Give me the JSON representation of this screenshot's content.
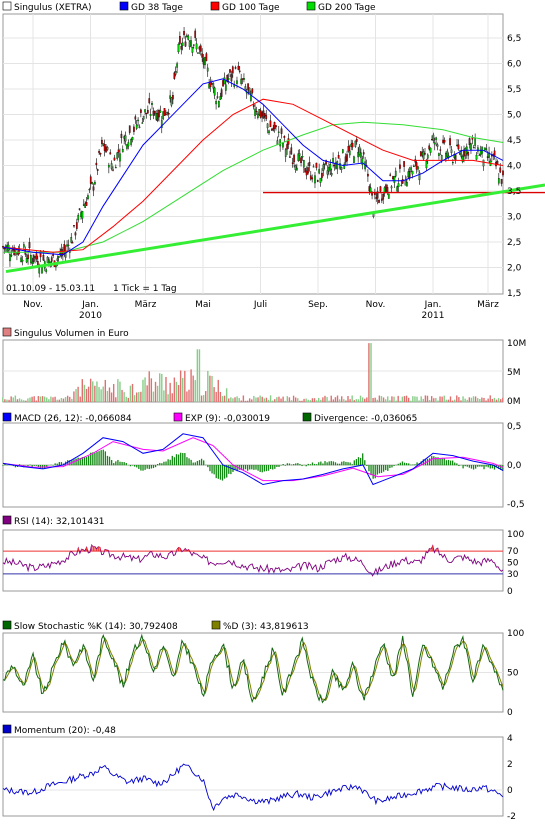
{
  "chart_data": [
    {
      "type": "line",
      "panel": "price",
      "legend": [
        {
          "label": "Singulus (XETRA)",
          "color": "#ffffff"
        },
        {
          "label": "GD 38 Tage",
          "color": "#0000ff"
        },
        {
          "label": "GD 100 Tage",
          "color": "#ff0000"
        },
        {
          "label": "GD 200 Tage",
          "color": "#00dd00"
        }
      ],
      "date_range_label": "01.10.09 - 15.03.11",
      "tick_label": "1 Tick = 1 Tag",
      "ylim": [
        1.5,
        7.0
      ],
      "yticks": [
        "6,5",
        "6,0",
        "5,5",
        "5,0",
        "4,5",
        "4,0",
        "3,5",
        "3,0",
        "2,5",
        "2,0",
        "1,5"
      ],
      "xticks": [
        {
          "label": "Nov.",
          "pos": 0.06
        },
        {
          "label": "Jan.",
          "pos": 0.175
        },
        {
          "label": "März",
          "pos": 0.285
        },
        {
          "label": "Mai",
          "pos": 0.4
        },
        {
          "label": "Juli",
          "pos": 0.515
        },
        {
          "label": "Sep.",
          "pos": 0.63
        },
        {
          "label": "Nov.",
          "pos": 0.745
        },
        {
          "label": "Jan.",
          "pos": 0.86
        },
        {
          "label": "März",
          "pos": 0.97
        }
      ],
      "year_labels": [
        {
          "label": "2010",
          "pos": 0.175
        },
        {
          "label": "2011",
          "pos": 0.86
        }
      ],
      "close": [
        [
          0.0,
          2.4
        ],
        [
          0.03,
          2.35
        ],
        [
          0.06,
          2.2
        ],
        [
          0.09,
          2.1
        ],
        [
          0.12,
          2.25
        ],
        [
          0.14,
          2.6
        ],
        [
          0.16,
          3.2
        ],
        [
          0.18,
          3.6
        ],
        [
          0.2,
          4.4
        ],
        [
          0.22,
          4.0
        ],
        [
          0.24,
          4.5
        ],
        [
          0.26,
          4.7
        ],
        [
          0.28,
          5.0
        ],
        [
          0.3,
          5.1
        ],
        [
          0.32,
          5.0
        ],
        [
          0.34,
          5.3
        ],
        [
          0.35,
          6.2
        ],
        [
          0.37,
          6.6
        ],
        [
          0.39,
          6.3
        ],
        [
          0.41,
          5.8
        ],
        [
          0.43,
          5.3
        ],
        [
          0.45,
          5.7
        ],
        [
          0.47,
          5.8
        ],
        [
          0.49,
          5.4
        ],
        [
          0.51,
          5.1
        ],
        [
          0.53,
          4.8
        ],
        [
          0.55,
          4.6
        ],
        [
          0.57,
          4.3
        ],
        [
          0.59,
          4.1
        ],
        [
          0.61,
          3.9
        ],
        [
          0.63,
          3.8
        ],
        [
          0.65,
          3.9
        ],
        [
          0.67,
          4.1
        ],
        [
          0.69,
          4.2
        ],
        [
          0.71,
          4.4
        ],
        [
          0.73,
          3.8
        ],
        [
          0.74,
          3.2
        ],
        [
          0.76,
          3.5
        ],
        [
          0.78,
          3.7
        ],
        [
          0.8,
          3.8
        ],
        [
          0.82,
          3.9
        ],
        [
          0.84,
          4.1
        ],
        [
          0.86,
          4.5
        ],
        [
          0.88,
          4.3
        ],
        [
          0.9,
          4.2
        ],
        [
          0.92,
          4.3
        ],
        [
          0.94,
          4.4
        ],
        [
          0.96,
          4.2
        ],
        [
          0.98,
          4.1
        ],
        [
          1.0,
          3.7
        ]
      ],
      "gd38": [
        [
          0.0,
          2.4
        ],
        [
          0.06,
          2.3
        ],
        [
          0.12,
          2.25
        ],
        [
          0.16,
          2.5
        ],
        [
          0.2,
          3.2
        ],
        [
          0.24,
          3.8
        ],
        [
          0.28,
          4.4
        ],
        [
          0.32,
          4.8
        ],
        [
          0.36,
          5.2
        ],
        [
          0.4,
          5.6
        ],
        [
          0.44,
          5.7
        ],
        [
          0.48,
          5.5
        ],
        [
          0.52,
          5.2
        ],
        [
          0.56,
          4.8
        ],
        [
          0.6,
          4.4
        ],
        [
          0.64,
          4.1
        ],
        [
          0.68,
          4.0
        ],
        [
          0.72,
          4.05
        ],
        [
          0.76,
          3.7
        ],
        [
          0.8,
          3.7
        ],
        [
          0.84,
          3.85
        ],
        [
          0.88,
          4.1
        ],
        [
          0.92,
          4.3
        ],
        [
          0.96,
          4.3
        ],
        [
          1.0,
          4.1
        ]
      ],
      "gd100": [
        [
          0.0,
          2.4
        ],
        [
          0.1,
          2.3
        ],
        [
          0.16,
          2.35
        ],
        [
          0.22,
          2.8
        ],
        [
          0.28,
          3.3
        ],
        [
          0.34,
          3.9
        ],
        [
          0.4,
          4.5
        ],
        [
          0.46,
          5.0
        ],
        [
          0.52,
          5.3
        ],
        [
          0.58,
          5.2
        ],
        [
          0.64,
          4.9
        ],
        [
          0.7,
          4.6
        ],
        [
          0.76,
          4.3
        ],
        [
          0.82,
          4.1
        ],
        [
          0.88,
          4.1
        ],
        [
          0.94,
          4.1
        ],
        [
          1.0,
          4.0
        ]
      ],
      "gd200": [
        [
          0.0,
          2.3
        ],
        [
          0.12,
          2.3
        ],
        [
          0.2,
          2.5
        ],
        [
          0.28,
          2.9
        ],
        [
          0.36,
          3.4
        ],
        [
          0.44,
          3.9
        ],
        [
          0.52,
          4.3
        ],
        [
          0.6,
          4.6
        ],
        [
          0.66,
          4.8
        ],
        [
          0.72,
          4.85
        ],
        [
          0.8,
          4.8
        ],
        [
          0.88,
          4.7
        ],
        [
          0.94,
          4.55
        ],
        [
          1.0,
          4.45
        ]
      ],
      "support_line": [
        [
          0.0,
          1.92
        ],
        [
          1.0,
          3.5
        ]
      ],
      "resistance_line": [
        [
          0.52,
          3.47
        ],
        [
          1.0,
          3.47
        ]
      ]
    },
    {
      "type": "bar",
      "panel": "volume",
      "title": "Singulus Volumen in Euro",
      "yticks": [
        "10M",
        "5M",
        "0M"
      ],
      "ylim": [
        0,
        10
      ]
    },
    {
      "type": "line",
      "panel": "macd",
      "legend": [
        {
          "label": "MACD (26, 12): -0,066084",
          "color": "#0000ff"
        },
        {
          "label": "EXP (9): -0,030019",
          "color": "#ff00ff"
        },
        {
          "label": "Divergence: -0,036065",
          "color": "#006600"
        }
      ],
      "yticks": [
        "0,5",
        "0,0",
        "-0,5"
      ],
      "ylim": [
        -0.6,
        0.6
      ],
      "macd": [
        [
          0.0,
          0.02
        ],
        [
          0.04,
          -0.02
        ],
        [
          0.08,
          -0.05
        ],
        [
          0.12,
          0.0
        ],
        [
          0.16,
          0.15
        ],
        [
          0.2,
          0.35
        ],
        [
          0.24,
          0.3
        ],
        [
          0.28,
          0.15
        ],
        [
          0.32,
          0.2
        ],
        [
          0.36,
          0.4
        ],
        [
          0.4,
          0.35
        ],
        [
          0.44,
          0.0
        ],
        [
          0.48,
          -0.1
        ],
        [
          0.52,
          -0.25
        ],
        [
          0.56,
          -0.2
        ],
        [
          0.6,
          -0.18
        ],
        [
          0.64,
          -0.12
        ],
        [
          0.68,
          -0.05
        ],
        [
          0.72,
          0.0
        ],
        [
          0.74,
          -0.25
        ],
        [
          0.78,
          -0.15
        ],
        [
          0.82,
          -0.05
        ],
        [
          0.86,
          0.15
        ],
        [
          0.9,
          0.12
        ],
        [
          0.94,
          0.05
        ],
        [
          0.98,
          0.0
        ],
        [
          1.0,
          -0.07
        ]
      ],
      "exp": [
        [
          0.0,
          0.02
        ],
        [
          0.06,
          -0.03
        ],
        [
          0.12,
          -0.02
        ],
        [
          0.18,
          0.15
        ],
        [
          0.22,
          0.3
        ],
        [
          0.28,
          0.2
        ],
        [
          0.32,
          0.18
        ],
        [
          0.38,
          0.35
        ],
        [
          0.42,
          0.25
        ],
        [
          0.46,
          0.0
        ],
        [
          0.52,
          -0.2
        ],
        [
          0.58,
          -0.2
        ],
        [
          0.64,
          -0.14
        ],
        [
          0.7,
          -0.04
        ],
        [
          0.75,
          -0.15
        ],
        [
          0.8,
          -0.12
        ],
        [
          0.86,
          0.08
        ],
        [
          0.92,
          0.1
        ],
        [
          0.98,
          0.02
        ],
        [
          1.0,
          -0.03
        ]
      ]
    },
    {
      "type": "line",
      "panel": "rsi",
      "legend": [
        {
          "label": "RSI (14): 32,101431",
          "color": "#800080"
        }
      ],
      "yticks": [
        "100",
        "70",
        "50",
        "30",
        "0"
      ],
      "ylim": [
        0,
        100
      ],
      "bands": [
        70,
        30
      ],
      "values": [
        [
          0.0,
          52
        ],
        [
          0.03,
          48
        ],
        [
          0.06,
          40
        ],
        [
          0.09,
          45
        ],
        [
          0.12,
          55
        ],
        [
          0.15,
          70
        ],
        [
          0.18,
          75
        ],
        [
          0.21,
          65
        ],
        [
          0.24,
          60
        ],
        [
          0.27,
          55
        ],
        [
          0.3,
          65
        ],
        [
          0.33,
          60
        ],
        [
          0.36,
          75
        ],
        [
          0.39,
          60
        ],
        [
          0.42,
          50
        ],
        [
          0.45,
          55
        ],
        [
          0.48,
          45
        ],
        [
          0.51,
          40
        ],
        [
          0.54,
          38
        ],
        [
          0.57,
          35
        ],
        [
          0.6,
          45
        ],
        [
          0.63,
          40
        ],
        [
          0.66,
          55
        ],
        [
          0.69,
          60
        ],
        [
          0.72,
          50
        ],
        [
          0.74,
          30
        ],
        [
          0.77,
          45
        ],
        [
          0.8,
          55
        ],
        [
          0.83,
          50
        ],
        [
          0.86,
          75
        ],
        [
          0.89,
          55
        ],
        [
          0.92,
          60
        ],
        [
          0.95,
          50
        ],
        [
          0.98,
          55
        ],
        [
          1.0,
          32
        ]
      ]
    },
    {
      "type": "line",
      "panel": "stochastic",
      "legend": [
        {
          "label": "Slow Stochastic %K (14): 30,792408",
          "color": "#006600"
        },
        {
          "label": "%D (3): 43,819613",
          "color": "#808000"
        }
      ],
      "yticks": [
        "100",
        "50",
        "0"
      ],
      "ylim": [
        0,
        100
      ],
      "k": [
        [
          0.0,
          40
        ],
        [
          0.02,
          60
        ],
        [
          0.04,
          30
        ],
        [
          0.06,
          70
        ],
        [
          0.08,
          20
        ],
        [
          0.1,
          55
        ],
        [
          0.12,
          90
        ],
        [
          0.14,
          60
        ],
        [
          0.16,
          85
        ],
        [
          0.18,
          40
        ],
        [
          0.2,
          95
        ],
        [
          0.22,
          70
        ],
        [
          0.24,
          30
        ],
        [
          0.26,
          80
        ],
        [
          0.28,
          95
        ],
        [
          0.3,
          50
        ],
        [
          0.32,
          85
        ],
        [
          0.34,
          40
        ],
        [
          0.36,
          90
        ],
        [
          0.38,
          60
        ],
        [
          0.4,
          20
        ],
        [
          0.42,
          70
        ],
        [
          0.44,
          85
        ],
        [
          0.46,
          30
        ],
        [
          0.48,
          65
        ],
        [
          0.5,
          10
        ],
        [
          0.52,
          45
        ],
        [
          0.54,
          80
        ],
        [
          0.56,
          20
        ],
        [
          0.58,
          60
        ],
        [
          0.6,
          90
        ],
        [
          0.62,
          35
        ],
        [
          0.64,
          10
        ],
        [
          0.66,
          50
        ],
        [
          0.68,
          25
        ],
        [
          0.7,
          60
        ],
        [
          0.72,
          15
        ],
        [
          0.74,
          50
        ],
        [
          0.76,
          90
        ],
        [
          0.78,
          40
        ],
        [
          0.8,
          95
        ],
        [
          0.82,
          20
        ],
        [
          0.84,
          85
        ],
        [
          0.86,
          60
        ],
        [
          0.88,
          30
        ],
        [
          0.9,
          75
        ],
        [
          0.92,
          95
        ],
        [
          0.94,
          40
        ],
        [
          0.96,
          80
        ],
        [
          0.98,
          55
        ],
        [
          1.0,
          31
        ]
      ]
    },
    {
      "type": "line",
      "panel": "momentum",
      "legend": [
        {
          "label": "Momentum (20): -0,48",
          "color": "#0000cc"
        }
      ],
      "yticks": [
        "4",
        "2",
        "0",
        "-2"
      ],
      "ylim": [
        -2,
        4
      ],
      "values": [
        [
          0.0,
          0.0
        ],
        [
          0.03,
          -0.1
        ],
        [
          0.06,
          -0.2
        ],
        [
          0.09,
          0.3
        ],
        [
          0.12,
          0.6
        ],
        [
          0.15,
          1.0
        ],
        [
          0.18,
          1.3
        ],
        [
          0.2,
          1.8
        ],
        [
          0.22,
          1.2
        ],
        [
          0.25,
          0.6
        ],
        [
          0.28,
          0.9
        ],
        [
          0.31,
          0.5
        ],
        [
          0.33,
          0.8
        ],
        [
          0.36,
          1.9
        ],
        [
          0.38,
          1.5
        ],
        [
          0.4,
          0.8
        ],
        [
          0.42,
          -1.4
        ],
        [
          0.44,
          -0.6
        ],
        [
          0.47,
          -0.3
        ],
        [
          0.5,
          -0.8
        ],
        [
          0.53,
          -0.9
        ],
        [
          0.56,
          -0.5
        ],
        [
          0.59,
          -0.3
        ],
        [
          0.62,
          -0.6
        ],
        [
          0.65,
          -0.2
        ],
        [
          0.68,
          0.1
        ],
        [
          0.71,
          0.3
        ],
        [
          0.73,
          -0.4
        ],
        [
          0.75,
          -0.9
        ],
        [
          0.78,
          -0.6
        ],
        [
          0.81,
          -0.3
        ],
        [
          0.84,
          0.0
        ],
        [
          0.87,
          0.3
        ],
        [
          0.9,
          0.2
        ],
        [
          0.93,
          0.0
        ],
        [
          0.96,
          0.2
        ],
        [
          0.98,
          -0.1
        ],
        [
          1.0,
          -0.48
        ]
      ]
    }
  ]
}
